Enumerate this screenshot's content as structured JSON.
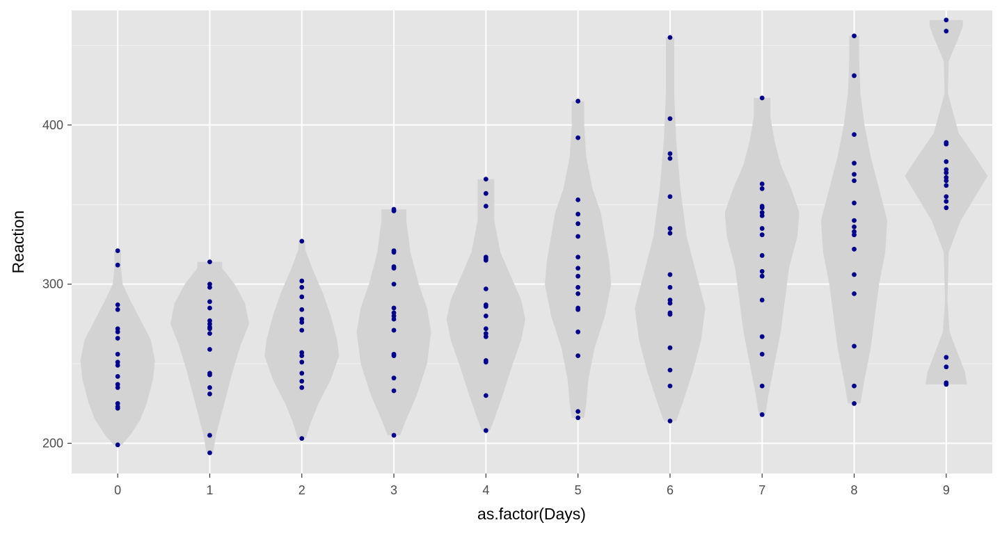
{
  "chart_data": {
    "type": "violin",
    "xlabel": "as.factor(Days)",
    "ylabel": "Reaction",
    "categories": [
      "0",
      "1",
      "2",
      "3",
      "4",
      "5",
      "6",
      "7",
      "8",
      "9"
    ],
    "ylim": [
      181,
      472
    ],
    "y_ticks": [
      200,
      300,
      400
    ],
    "grid": true,
    "violin_fill": "#d3d3d3",
    "point_color": "#00008b",
    "panel_background": "#e5e5e5",
    "groups": [
      {
        "day": "0",
        "values": [
          321,
          312,
          287,
          284,
          272,
          270,
          266,
          256,
          251,
          249,
          242,
          237,
          235,
          225,
          223,
          222,
          199
        ],
        "density": [
          [
            199,
            0.1
          ],
          [
            205,
            0.3
          ],
          [
            215,
            0.55
          ],
          [
            225,
            0.7
          ],
          [
            240,
            0.85
          ],
          [
            252,
            0.9
          ],
          [
            265,
            0.8
          ],
          [
            280,
            0.5
          ],
          [
            290,
            0.3
          ],
          [
            300,
            0.12
          ],
          [
            310,
            0.08
          ],
          [
            321,
            0.08
          ]
        ]
      },
      {
        "day": "1",
        "values": [
          314,
          300,
          298,
          289,
          285,
          277,
          275,
          273,
          272,
          269,
          259,
          244,
          243,
          235,
          231,
          205,
          194
        ],
        "density": [
          [
            194,
            0.08
          ],
          [
            205,
            0.15
          ],
          [
            225,
            0.35
          ],
          [
            245,
            0.55
          ],
          [
            262,
            0.75
          ],
          [
            275,
            0.95
          ],
          [
            288,
            0.85
          ],
          [
            300,
            0.6
          ],
          [
            310,
            0.3
          ],
          [
            314,
            0.3
          ]
        ]
      },
      {
        "day": "2",
        "values": [
          327,
          302,
          298,
          292,
          284,
          278,
          276,
          271,
          257,
          255,
          251,
          244,
          239,
          235,
          203
        ],
        "density": [
          [
            203,
            0.1
          ],
          [
            212,
            0.2
          ],
          [
            225,
            0.4
          ],
          [
            240,
            0.7
          ],
          [
            255,
            0.9
          ],
          [
            265,
            0.85
          ],
          [
            280,
            0.7
          ],
          [
            295,
            0.5
          ],
          [
            310,
            0.25
          ],
          [
            322,
            0.08
          ],
          [
            327,
            0.08
          ]
        ]
      },
      {
        "day": "3",
        "values": [
          347,
          346,
          321,
          320,
          311,
          310,
          300,
          285,
          282,
          280,
          278,
          271,
          256,
          255,
          241,
          233,
          205
        ],
        "density": [
          [
            205,
            0.15
          ],
          [
            215,
            0.3
          ],
          [
            230,
            0.55
          ],
          [
            250,
            0.8
          ],
          [
            270,
            0.9
          ],
          [
            285,
            0.8
          ],
          [
            300,
            0.6
          ],
          [
            320,
            0.4
          ],
          [
            340,
            0.3
          ],
          [
            347,
            0.3
          ]
        ]
      },
      {
        "day": "4",
        "values": [
          366,
          357,
          349,
          317,
          316,
          315,
          297,
          287,
          286,
          280,
          272,
          269,
          267,
          252,
          251,
          230,
          208
        ],
        "density": [
          [
            208,
            0.1
          ],
          [
            215,
            0.2
          ],
          [
            230,
            0.4
          ],
          [
            250,
            0.65
          ],
          [
            265,
            0.85
          ],
          [
            278,
            0.95
          ],
          [
            290,
            0.85
          ],
          [
            305,
            0.6
          ],
          [
            320,
            0.35
          ],
          [
            340,
            0.2
          ],
          [
            355,
            0.2
          ],
          [
            366,
            0.2
          ]
        ]
      },
      {
        "day": "5",
        "values": [
          415,
          392,
          353,
          344,
          338,
          330,
          317,
          310,
          305,
          298,
          294,
          285,
          284,
          270,
          255,
          220,
          216
        ],
        "density": [
          [
            216,
            0.15
          ],
          [
            225,
            0.2
          ],
          [
            240,
            0.25
          ],
          [
            260,
            0.4
          ],
          [
            280,
            0.65
          ],
          [
            300,
            0.8
          ],
          [
            315,
            0.75
          ],
          [
            330,
            0.65
          ],
          [
            345,
            0.55
          ],
          [
            360,
            0.35
          ],
          [
            380,
            0.2
          ],
          [
            400,
            0.15
          ],
          [
            415,
            0.15
          ]
        ]
      },
      {
        "day": "6",
        "values": [
          455,
          404,
          382,
          379,
          355,
          335,
          332,
          306,
          298,
          290,
          288,
          282,
          281,
          260,
          246,
          236,
          214
        ],
        "density": [
          [
            214,
            0.15
          ],
          [
            225,
            0.3
          ],
          [
            245,
            0.55
          ],
          [
            265,
            0.75
          ],
          [
            285,
            0.85
          ],
          [
            305,
            0.65
          ],
          [
            330,
            0.4
          ],
          [
            360,
            0.25
          ],
          [
            390,
            0.15
          ],
          [
            420,
            0.1
          ],
          [
            445,
            0.1
          ],
          [
            455,
            0.1
          ]
        ]
      },
      {
        "day": "7",
        "values": [
          417,
          363,
          360,
          349,
          348,
          345,
          343,
          335,
          331,
          318,
          308,
          305,
          290,
          267,
          256,
          236,
          218
        ],
        "density": [
          [
            218,
            0.08
          ],
          [
            230,
            0.15
          ],
          [
            250,
            0.3
          ],
          [
            270,
            0.45
          ],
          [
            290,
            0.55
          ],
          [
            310,
            0.65
          ],
          [
            330,
            0.85
          ],
          [
            345,
            0.9
          ],
          [
            360,
            0.7
          ],
          [
            375,
            0.45
          ],
          [
            390,
            0.3
          ],
          [
            405,
            0.2
          ],
          [
            417,
            0.2
          ]
        ]
      },
      {
        "day": "8",
        "values": [
          456,
          431,
          394,
          376,
          369,
          365,
          351,
          340,
          336,
          333,
          331,
          322,
          306,
          294,
          261,
          236,
          225
        ],
        "density": [
          [
            225,
            0.15
          ],
          [
            240,
            0.25
          ],
          [
            260,
            0.4
          ],
          [
            280,
            0.5
          ],
          [
            300,
            0.6
          ],
          [
            320,
            0.75
          ],
          [
            340,
            0.8
          ],
          [
            360,
            0.6
          ],
          [
            380,
            0.4
          ],
          [
            400,
            0.25
          ],
          [
            420,
            0.15
          ],
          [
            440,
            0.12
          ],
          [
            456,
            0.12
          ]
        ]
      },
      {
        "day": "9",
        "values": [
          466,
          459,
          389,
          388,
          377,
          372,
          370,
          367,
          365,
          362,
          355,
          352,
          348,
          254,
          248,
          238,
          237
        ],
        "density": [
          [
            237,
            0.5
          ],
          [
            245,
            0.45
          ],
          [
            255,
            0.3
          ],
          [
            270,
            0.08
          ],
          [
            290,
            0.03
          ],
          [
            320,
            0.06
          ],
          [
            340,
            0.35
          ],
          [
            355,
            0.7
          ],
          [
            368,
            1.0
          ],
          [
            380,
            0.7
          ],
          [
            395,
            0.3
          ],
          [
            420,
            0.04
          ],
          [
            440,
            0.06
          ],
          [
            455,
            0.3
          ],
          [
            462,
            0.4
          ],
          [
            466,
            0.4
          ]
        ]
      }
    ]
  }
}
